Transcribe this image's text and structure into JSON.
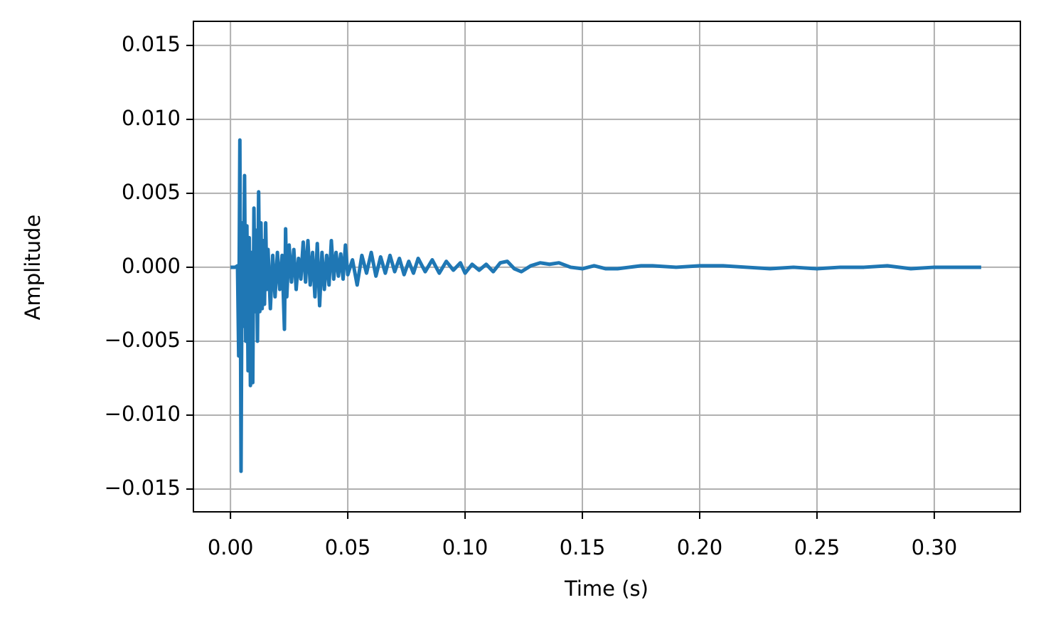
{
  "chart_data": {
    "type": "line",
    "x_label": "Time (s)",
    "y_label": "Amplitude",
    "xlim": [
      -0.0158,
      0.3367
    ],
    "ylim": [
      -0.01654,
      0.01663
    ],
    "xticks": [
      {
        "value": 0,
        "label": "0.00"
      },
      {
        "value": 0.05,
        "label": "0.05"
      },
      {
        "value": 0.1,
        "label": "0.10"
      },
      {
        "value": 0.15,
        "label": "0.15"
      },
      {
        "value": 0.2,
        "label": "0.20"
      },
      {
        "value": 0.25,
        "label": "0.25"
      },
      {
        "value": 0.3,
        "label": "0.30"
      }
    ],
    "yticks": [
      {
        "value": -0.015,
        "label": "−0.015"
      },
      {
        "value": -0.01,
        "label": "−0.010"
      },
      {
        "value": -0.005,
        "label": "−0.005"
      },
      {
        "value": 0,
        "label": "0.000"
      },
      {
        "value": 0.005,
        "label": "0.005"
      },
      {
        "value": 0.01,
        "label": "0.010"
      },
      {
        "value": 0.015,
        "label": "0.015"
      }
    ],
    "grid": true,
    "x": [
      0,
      0.002,
      0.003,
      0.0035,
      0.004,
      0.0045,
      0.005,
      0.0055,
      0.006,
      0.0065,
      0.007,
      0.0075,
      0.008,
      0.0085,
      0.009,
      0.0095,
      0.01,
      0.0105,
      0.011,
      0.0115,
      0.012,
      0.0125,
      0.013,
      0.0135,
      0.014,
      0.0145,
      0.015,
      0.0155,
      0.016,
      0.017,
      0.018,
      0.019,
      0.02,
      0.021,
      0.022,
      0.023,
      0.0235,
      0.024,
      0.025,
      0.026,
      0.027,
      0.028,
      0.029,
      0.03,
      0.031,
      0.032,
      0.033,
      0.034,
      0.035,
      0.036,
      0.037,
      0.038,
      0.039,
      0.04,
      0.041,
      0.042,
      0.043,
      0.044,
      0.045,
      0.046,
      0.047,
      0.048,
      0.049,
      0.05,
      0.052,
      0.054,
      0.056,
      0.058,
      0.06,
      0.062,
      0.064,
      0.066,
      0.068,
      0.07,
      0.072,
      0.074,
      0.076,
      0.078,
      0.08,
      0.083,
      0.086,
      0.089,
      0.092,
      0.095,
      0.098,
      0.1,
      0.103,
      0.106,
      0.109,
      0.112,
      0.115,
      0.118,
      0.121,
      0.124,
      0.128,
      0.132,
      0.136,
      0.14,
      0.145,
      0.15,
      0.155,
      0.16,
      0.165,
      0.17,
      0.175,
      0.18,
      0.19,
      0.2,
      0.21,
      0.22,
      0.23,
      0.24,
      0.25,
      0.26,
      0.27,
      0.28,
      0.29,
      0.3,
      0.31,
      0.32
    ],
    "series": [
      {
        "color": "#1f77b4",
        "values": [
          0,
          0,
          0.0001,
          -0.006,
          0.0086,
          -0.0138,
          0.003,
          -0.004,
          0.0062,
          -0.005,
          0.0028,
          -0.007,
          0.002,
          -0.008,
          0.001,
          -0.0078,
          0.004,
          -0.003,
          0.0025,
          -0.005,
          0.0051,
          -0.003,
          0.003,
          -0.0028,
          0.0018,
          -0.0025,
          0.003,
          -0.0015,
          0.0012,
          -0.0028,
          0.0008,
          -0.002,
          0.001,
          -0.0015,
          0.0008,
          -0.0042,
          0.0026,
          -0.002,
          0.0015,
          -0.001,
          0.0012,
          -0.0015,
          0.0006,
          -0.0008,
          0.0017,
          -0.001,
          0.0018,
          -0.0012,
          0.001,
          -0.002,
          0.0016,
          -0.0026,
          0.001,
          -0.0015,
          0.0008,
          -0.0012,
          0.0018,
          -0.0008,
          0.001,
          -0.0006,
          0.0009,
          -0.0008,
          0.0015,
          -0.0005,
          0.0005,
          -0.0012,
          0.0008,
          -0.0004,
          0.001,
          -0.0006,
          0.0007,
          -0.0004,
          0.0008,
          -0.0003,
          0.0006,
          -0.0005,
          0.0004,
          -0.0004,
          0.0006,
          -0.0003,
          0.0005,
          -0.0004,
          0.0004,
          -0.0002,
          0.0003,
          -0.0004,
          0.0002,
          -0.0002,
          0.0002,
          -0.0003,
          0.0003,
          0.0004,
          -0.0001,
          -0.0003,
          0.0001,
          0.0003,
          0.0002,
          0.0003,
          0,
          -0.0001,
          0.0001,
          -0.0001,
          -0.0001,
          0,
          0.0001,
          0.0001,
          0,
          0.0001,
          0.0001,
          0,
          -0.0001,
          0,
          -0.0001,
          0,
          0,
          0.0001,
          -0.0001,
          0,
          0,
          0
        ]
      }
    ]
  }
}
